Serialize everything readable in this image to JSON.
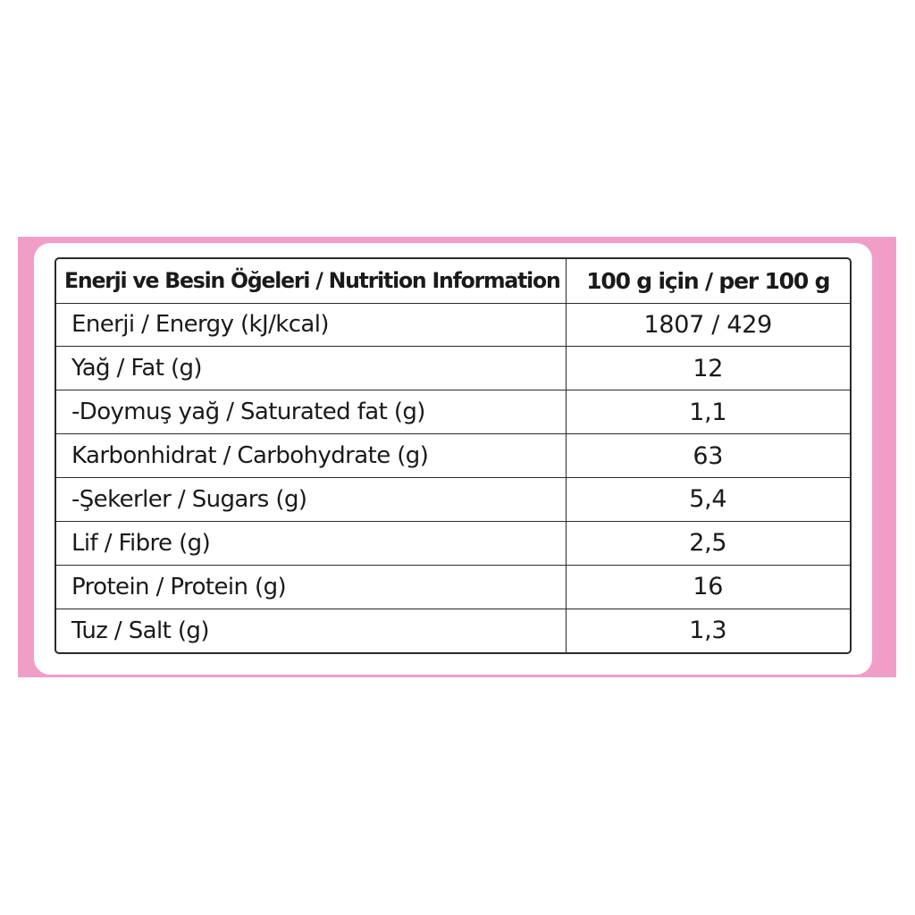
{
  "colors": {
    "band": "#f09dc8",
    "card": "#ffffff",
    "border": "#2a2a2a",
    "text": "#1a1a1a"
  },
  "table": {
    "header": {
      "label": "Enerji ve Besin Öğeleri / Nutrition Information",
      "value": "100 g için / per 100 g"
    },
    "rows": [
      {
        "label": "Enerji / Energy (kJ/kcal)",
        "value": "1807 / 429"
      },
      {
        "label": "Yağ / Fat (g)",
        "value": "12"
      },
      {
        "label": "-Doymuş yağ / Saturated fat (g)",
        "value": "1,1"
      },
      {
        "label": "Karbonhidrat / Carbohydrate (g)",
        "value": "63"
      },
      {
        "label": "-Şekerler / Sugars (g)",
        "value": "5,4"
      },
      {
        "label": "Lif / Fibre (g)",
        "value": "2,5"
      },
      {
        "label": "Protein / Protein (g)",
        "value": "16"
      },
      {
        "label": "Tuz / Salt (g)",
        "value": "1,3"
      }
    ]
  }
}
